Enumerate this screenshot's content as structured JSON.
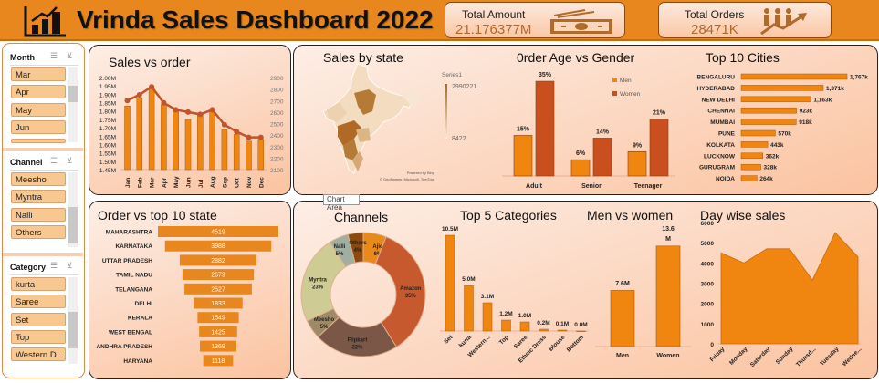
{
  "header": {
    "title": "Vrinda Sales Dashboard 2022",
    "logo_icon": "bar-chart-growth-icon",
    "kpis": [
      {
        "label": "Total Amount",
        "value": "21.176377M",
        "icon": "cash-icon"
      },
      {
        "label": "Total Orders",
        "value": "28471K",
        "icon": "people-growth-icon"
      }
    ]
  },
  "slicers": [
    {
      "title": "Month",
      "items": [
        "Mar",
        "Apr",
        "May",
        "Jun"
      ]
    },
    {
      "title": "Channel",
      "items": [
        "Meesho",
        "Myntra",
        "Nalli",
        "Others"
      ]
    },
    {
      "title": "Category",
      "items": [
        "kurta",
        "Saree",
        "Set",
        "Top",
        "Western D..."
      ]
    }
  ],
  "tooltip": "Chart Area",
  "colors": {
    "accent": "#E8871E",
    "bar": "#F0860F",
    "women": "#C9501E",
    "line": "#C0542A"
  },
  "chart_data": [
    {
      "id": "sales_vs_order",
      "type": "bar",
      "title": "Sales vs order",
      "categories": [
        "Jan",
        "Feb",
        "Mar",
        "Apr",
        "May",
        "Jun",
        "Jul",
        "Aug",
        "Sep",
        "Oct",
        "Nov",
        "Dec"
      ],
      "series": [
        {
          "axis": "left",
          "type": "bar",
          "values": [
            1.83,
            1.88,
            1.93,
            1.84,
            1.8,
            1.75,
            1.78,
            1.8,
            1.69,
            1.66,
            1.62,
            1.63
          ]
        },
        {
          "axis": "right",
          "type": "line",
          "values": [
            2700,
            2750,
            2820,
            2680,
            2620,
            2600,
            2580,
            2620,
            2490,
            2430,
            2380,
            2380
          ]
        }
      ],
      "yticks_left": [
        "2.00M",
        "1.95M",
        "1.90M",
        "1.85M",
        "1.80M",
        "1.75M",
        "1.70M",
        "1.65M",
        "1.60M",
        "1.55M",
        "1.50M",
        "1.45M"
      ],
      "ylim_left": [
        1.45,
        2.0
      ],
      "yticks_right": [
        "2900",
        "2800",
        "2700",
        "2600",
        "2500",
        "2400",
        "2300",
        "2200",
        "2100"
      ],
      "ylim_right": [
        2100,
        2900
      ]
    },
    {
      "id": "sales_by_state",
      "type": "map",
      "title": "Sales by state",
      "legend_title": "Series1",
      "legend_max": "2990221",
      "legend_min": "8422",
      "credit1": "Powered by Bing",
      "credit2": "© GeoNames, Microsoft, TomTom"
    },
    {
      "id": "age_gender",
      "type": "bar",
      "title": "0rder Age vs Gender",
      "categories": [
        "Adult",
        "Senior",
        "Teenager"
      ],
      "series": [
        {
          "name": "Men",
          "values": [
            15,
            6,
            9
          ]
        },
        {
          "name": "Women",
          "values": [
            35,
            14,
            21
          ]
        }
      ],
      "labels": [
        [
          "15%",
          "6%",
          "9%"
        ],
        [
          "35%",
          "14%",
          "21%"
        ]
      ],
      "legend": "right"
    },
    {
      "id": "top_cities",
      "type": "bar",
      "orientation": "horizontal",
      "title": "Top 10 Cities",
      "categories": [
        "BENGALURU",
        "HYDERABAD",
        "NEW DELHI",
        "CHENNAI",
        "MUMBAI",
        "PUNE",
        "KOLKATA",
        "LUCKNOW",
        "GURUGRAM",
        "NOIDA"
      ],
      "values": [
        1767,
        1371,
        1163,
        923,
        918,
        570,
        443,
        362,
        328,
        264
      ],
      "labels": [
        "1,767k",
        "1,371k",
        "1,163k",
        "923k",
        "918k",
        "570k",
        "443k",
        "362k",
        "328k",
        "264k"
      ]
    },
    {
      "id": "top_states",
      "type": "funnel",
      "title": "Order vs top 10 state",
      "categories": [
        "MAHARASHTRA",
        "KARNATAKA",
        "UTTAR PRADESH",
        "TAMIL NADU",
        "TELANGANA",
        "DELHI",
        "KERALA",
        "WEST BENGAL",
        "ANDHRA PRADESH",
        "HARYANA"
      ],
      "values": [
        4519,
        3988,
        2882,
        2679,
        2527,
        1833,
        1549,
        1425,
        1369,
        1118
      ]
    },
    {
      "id": "channels",
      "type": "pie",
      "donut": true,
      "title": "Channels",
      "categories": [
        "Ajio",
        "Amazon",
        "Flipkart",
        "Meesho",
        "Myntra",
        "Nalli",
        "Others"
      ],
      "values": [
        6,
        35,
        22,
        5,
        23,
        5,
        4
      ],
      "colors": [
        "#E8891A",
        "#C65A2E",
        "#7B5747",
        "#9E8A68",
        "#CFCB94",
        "#9FB0A0",
        "#8C4A0E"
      ]
    },
    {
      "id": "top_categories",
      "type": "bar",
      "title": "Top 5 Categories",
      "categories": [
        "Set",
        "kurta",
        "Western...",
        "Top",
        "Saree",
        "Ethnic Dress",
        "Blouse",
        "Bottom"
      ],
      "values": [
        10.5,
        5.0,
        3.1,
        1.2,
        1.0,
        0.2,
        0.1,
        0.0
      ],
      "labels": [
        "10.5M",
        "5.0M",
        "3.1M",
        "1.2M",
        "1.0M",
        "0.2M",
        "0.1M",
        "0.0M"
      ]
    },
    {
      "id": "men_women",
      "type": "bar",
      "title": "Men vs women",
      "categories": [
        "Men",
        "Women"
      ],
      "values": [
        7.6,
        13.6
      ],
      "labels": [
        "7.6M",
        "13.6 M"
      ]
    },
    {
      "id": "day_sales",
      "type": "area",
      "title": "Day wise sales",
      "categories": [
        "Friday",
        "Monday",
        "Saturday",
        "Sunday",
        "Thursd...",
        "Tuesday",
        "Wedne..."
      ],
      "values": [
        4500,
        4000,
        4700,
        4700,
        3150,
        5500,
        4300
      ],
      "yticks": [
        "6000",
        "5000",
        "4000",
        "3000",
        "2000",
        "1000",
        "0"
      ],
      "ylim": [
        0,
        6000
      ]
    }
  ]
}
